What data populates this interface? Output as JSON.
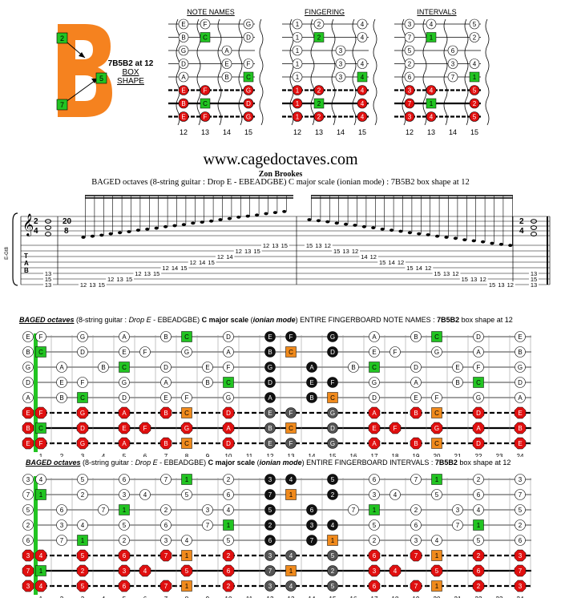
{
  "shape_label": {
    "line1": "7B5B2 at 12",
    "line2": "BOX",
    "line3": "SHAPE"
  },
  "b_shape": {
    "markers": [
      "2",
      "5",
      "7"
    ],
    "letter": "B"
  },
  "mini": {
    "titles": [
      "NOTE NAMES",
      "FINGERING",
      "INTERVALS"
    ],
    "frets": [
      "12",
      "13",
      "14",
      "15"
    ],
    "note_names": [
      [
        "E",
        "F",
        "",
        "G"
      ],
      [
        "B",
        "C",
        "",
        "D"
      ],
      [
        "G",
        "",
        "A",
        ""
      ],
      [
        "D",
        "",
        "E",
        "F"
      ],
      [
        "A",
        "",
        "B",
        "C"
      ],
      [
        "E",
        "F",
        "",
        "G"
      ],
      [
        "B",
        "C",
        "",
        "D"
      ],
      [
        "E",
        "F",
        "",
        "G"
      ]
    ],
    "fingering": [
      [
        "1",
        "2",
        "",
        "4"
      ],
      [
        "1",
        "2",
        "",
        "4"
      ],
      [
        "1",
        "",
        "3",
        ""
      ],
      [
        "1",
        "",
        "3",
        "4"
      ],
      [
        "1",
        "",
        "3",
        "4"
      ],
      [
        "1",
        "2",
        "",
        "4"
      ],
      [
        "1",
        "2",
        "",
        "4"
      ],
      [
        "1",
        "2",
        "",
        "4"
      ]
    ],
    "intervals": [
      [
        "3",
        "4",
        "",
        "5"
      ],
      [
        "7",
        "1",
        "",
        "2"
      ],
      [
        "5",
        "",
        "6",
        ""
      ],
      [
        "2",
        "",
        "3",
        "4"
      ],
      [
        "6",
        "",
        "7",
        "1"
      ],
      [
        "3",
        "4",
        "",
        "5"
      ],
      [
        "7",
        "1",
        "",
        "2"
      ],
      [
        "3",
        "4",
        "",
        "5"
      ]
    ]
  },
  "website": "www.cagedoctaves.com",
  "author": "Zon Brookes",
  "subtitle": "BAGED octaves (8-string guitar : Drop E - EBEADGBE) C major scale (ionian mode) : 7B5B2 box shape at 12",
  "notation": {
    "clef_left": "E-Gt8",
    "tab_letters": [
      "T",
      "A",
      "B"
    ],
    "time_sig_left": "2/4",
    "time_sig_mid": "20/8",
    "time_sig_right": "2/4",
    "tab_start": [
      "13",
      "15",
      "13"
    ],
    "tab_asc": [
      {
        "s": 8,
        "f": "12"
      },
      {
        "s": 8,
        "f": "13"
      },
      {
        "s": 8,
        "f": "15"
      },
      {
        "s": 7,
        "f": "12"
      },
      {
        "s": 7,
        "f": "13"
      },
      {
        "s": 7,
        "f": "15"
      },
      {
        "s": 6,
        "f": "12"
      },
      {
        "s": 6,
        "f": "13"
      },
      {
        "s": 6,
        "f": "15"
      },
      {
        "s": 5,
        "f": "12"
      },
      {
        "s": 5,
        "f": "14"
      },
      {
        "s": 5,
        "f": "15"
      },
      {
        "s": 4,
        "f": "12"
      },
      {
        "s": 4,
        "f": "14"
      },
      {
        "s": 4,
        "f": "15"
      },
      {
        "s": 3,
        "f": "12"
      },
      {
        "s": 3,
        "f": "14"
      },
      {
        "s": 2,
        "f": "12"
      },
      {
        "s": 2,
        "f": "13"
      },
      {
        "s": 2,
        "f": "15"
      },
      {
        "s": 1,
        "f": "12"
      },
      {
        "s": 1,
        "f": "13"
      },
      {
        "s": 1,
        "f": "15"
      }
    ],
    "tab_desc": [
      {
        "s": 1,
        "f": "15"
      },
      {
        "s": 1,
        "f": "13"
      },
      {
        "s": 1,
        "f": "12"
      },
      {
        "s": 2,
        "f": "15"
      },
      {
        "s": 2,
        "f": "13"
      },
      {
        "s": 2,
        "f": "12"
      },
      {
        "s": 3,
        "f": "14"
      },
      {
        "s": 3,
        "f": "12"
      },
      {
        "s": 4,
        "f": "15"
      },
      {
        "s": 4,
        "f": "14"
      },
      {
        "s": 4,
        "f": "12"
      },
      {
        "s": 5,
        "f": "15"
      },
      {
        "s": 5,
        "f": "14"
      },
      {
        "s": 5,
        "f": "12"
      },
      {
        "s": 6,
        "f": "15"
      },
      {
        "s": 6,
        "f": "13"
      },
      {
        "s": 6,
        "f": "12"
      },
      {
        "s": 7,
        "f": "15"
      },
      {
        "s": 7,
        "f": "13"
      },
      {
        "s": 7,
        "f": "12"
      },
      {
        "s": 8,
        "f": "15"
      },
      {
        "s": 8,
        "f": "13"
      },
      {
        "s": 8,
        "f": "12"
      }
    ],
    "tab_end": [
      "13",
      "15",
      "13"
    ]
  },
  "board1_title": {
    "b1": "BAGED octaves",
    "p1": " (8-string guitar : ",
    "i1": "Drop E",
    "p2": " - EBEADGBE) ",
    "b2": "C major scale",
    "p3": " (",
    "b3": "ionian mode",
    "p4": ") ENTIRE FINGERBOARD  NOTE NAMES : ",
    "b4": "7B5B2",
    "p5": " box shape at 12"
  },
  "board2_title": {
    "b1": "BAGED octaves",
    "p1": " (8-string guitar : ",
    "i1": "Drop E",
    "p2": " - EBEADGBE) ",
    "b2": "C major scale",
    "p3": " (",
    "b3": "ionian mode",
    "p4": ") ENTIRE FINGERBOARD  INTERVALS : ",
    "b4": "7B5B2",
    "p5": " box shape at 12"
  },
  "board_frets": [
    "1",
    "2",
    "3",
    "4",
    "5",
    "6",
    "7",
    "8",
    "9",
    "10",
    "11",
    "12",
    "13",
    "14",
    "15",
    "16",
    "17",
    "18",
    "19",
    "20",
    "21",
    "22",
    "23",
    "24"
  ],
  "board_open_names": [
    "E",
    "B",
    "G",
    "D",
    "A",
    "E",
    "B",
    "E"
  ],
  "board_open_intervals": [
    "3",
    "7",
    "5",
    "2",
    "6",
    "3",
    "7",
    "3"
  ],
  "colors": {
    "green": "#22c422",
    "orange": "#f08a1c",
    "red": "#e01010",
    "black": "#111111",
    "gray": "#555555",
    "b_shape": "#f5821f"
  }
}
